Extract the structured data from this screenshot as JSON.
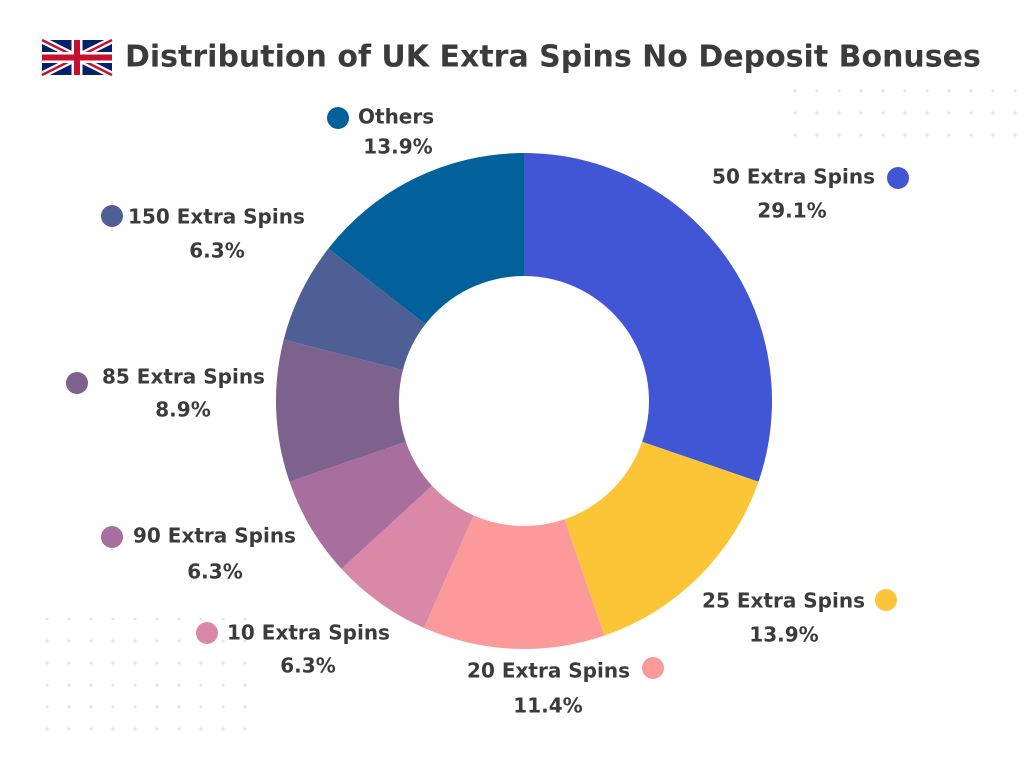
{
  "chart_data": {
    "type": "donut",
    "title": "Distribution of UK Extra Spins No Deposit Bonuses",
    "categories": [
      "50 Extra Spins",
      "25 Extra Spins",
      "20 Extra Spins",
      "10 Extra Spins",
      "90 Extra Spins",
      "85 Extra Spins",
      "150 Extra Spins",
      "Others"
    ],
    "values": [
      29.1,
      13.9,
      11.4,
      6.3,
      6.3,
      8.9,
      6.3,
      13.9
    ],
    "value_labels": [
      "29.1%",
      "13.9%",
      "11.4%",
      "6.3%",
      "6.3%",
      "8.9%",
      "6.3%",
      "13.9%"
    ],
    "colors": [
      "#4056d4",
      "#fcc537",
      "#fc999b",
      "#da88a8",
      "#a86e9e",
      "#7c628c",
      "#4e5f95",
      "#02619a"
    ],
    "legend": "around"
  }
}
